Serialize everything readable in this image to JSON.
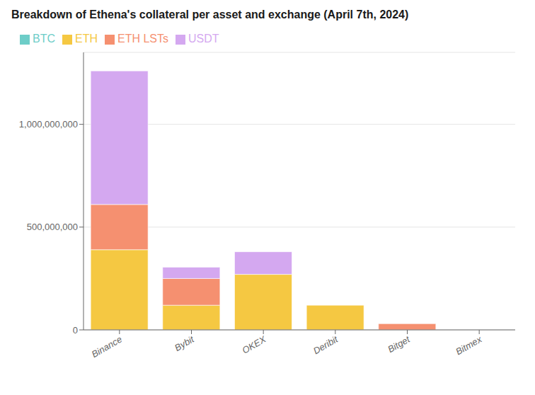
{
  "chart_data": {
    "type": "bar",
    "title": "Breakdown of Ethena's collateral per asset and exchange (April 7th, 2024)",
    "categories": [
      "Binance",
      "Bybit",
      "OKEX",
      "Deribit",
      "Bitget",
      "Bitmex"
    ],
    "series": [
      {
        "name": "BTC",
        "color": "#6dcdc8",
        "values": [
          0,
          0,
          0,
          0,
          0,
          0
        ]
      },
      {
        "name": "ETH",
        "color": "#f5c842",
        "values": [
          390000000,
          120000000,
          270000000,
          120000000,
          0,
          0
        ]
      },
      {
        "name": "ETH LSTs",
        "color": "#f59070",
        "values": [
          220000000,
          130000000,
          0,
          0,
          30000000,
          0
        ]
      },
      {
        "name": "USDT",
        "color": "#d4a8f0",
        "values": [
          650000000,
          55000000,
          110000000,
          0,
          0,
          0
        ]
      }
    ],
    "stacked": true,
    "ylim": [
      0,
      1350000000
    ],
    "yticks": [
      0,
      {
        "value": 500000000,
        "label": "500,000,000"
      },
      {
        "value": 1000000000,
        "label": "1,000,000,000"
      }
    ],
    "grid": true,
    "legend": "upper left"
  }
}
